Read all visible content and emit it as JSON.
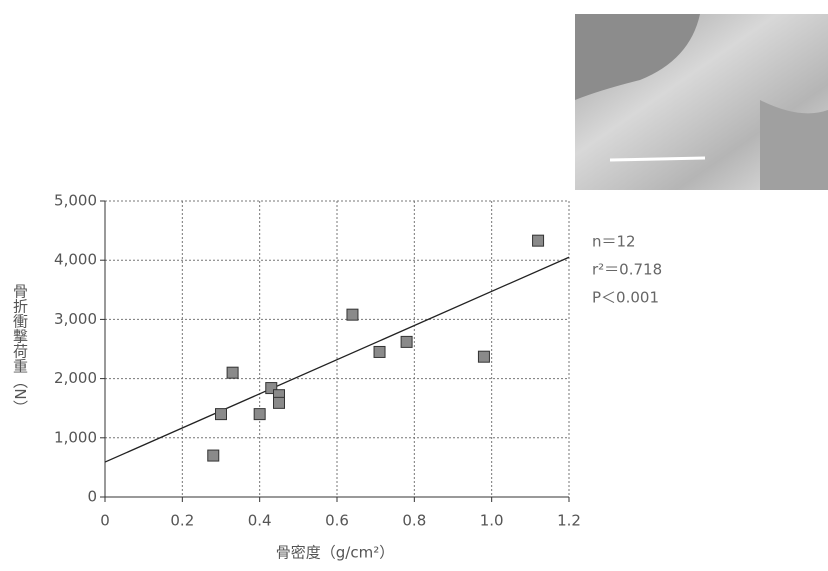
{
  "chart_data": {
    "type": "scatter",
    "x_label": "骨密度（g/cm²）",
    "y_label": "骨折衝撃荷重（N）",
    "annotations": [
      "n＝12",
      "r²＝0.718",
      "P＜0.001"
    ],
    "series": [
      {
        "color": "#8a8a8a",
        "x": [
          0.28,
          0.3,
          0.33,
          0.4,
          0.43,
          0.45,
          0.45,
          0.64,
          0.71,
          0.78,
          0.98,
          1.12
        ],
        "values": [
          700,
          1400,
          2100,
          1400,
          1840,
          1720,
          1590,
          3080,
          2450,
          2620,
          2370,
          4330
        ]
      }
    ],
    "trend_line": {
      "color": "#222",
      "x": [
        0,
        1.2
      ],
      "values": [
        590,
        4050
      ]
    },
    "xlim": [
      0,
      1.2
    ],
    "ylim": [
      0,
      5000
    ],
    "xticks": [
      0,
      0.2,
      0.4,
      0.6,
      0.8,
      {
        "value": 1,
        "label": "1.0"
      },
      1.2
    ],
    "yticks": [
      0,
      {
        "value": 1000,
        "label": "1,000"
      },
      {
        "value": 2000,
        "label": "2,000"
      },
      {
        "value": 3000,
        "label": "3,000"
      },
      {
        "value": 4000,
        "label": "4,000"
      },
      {
        "value": 5000,
        "label": "5,000"
      }
    ],
    "grid": true
  }
}
